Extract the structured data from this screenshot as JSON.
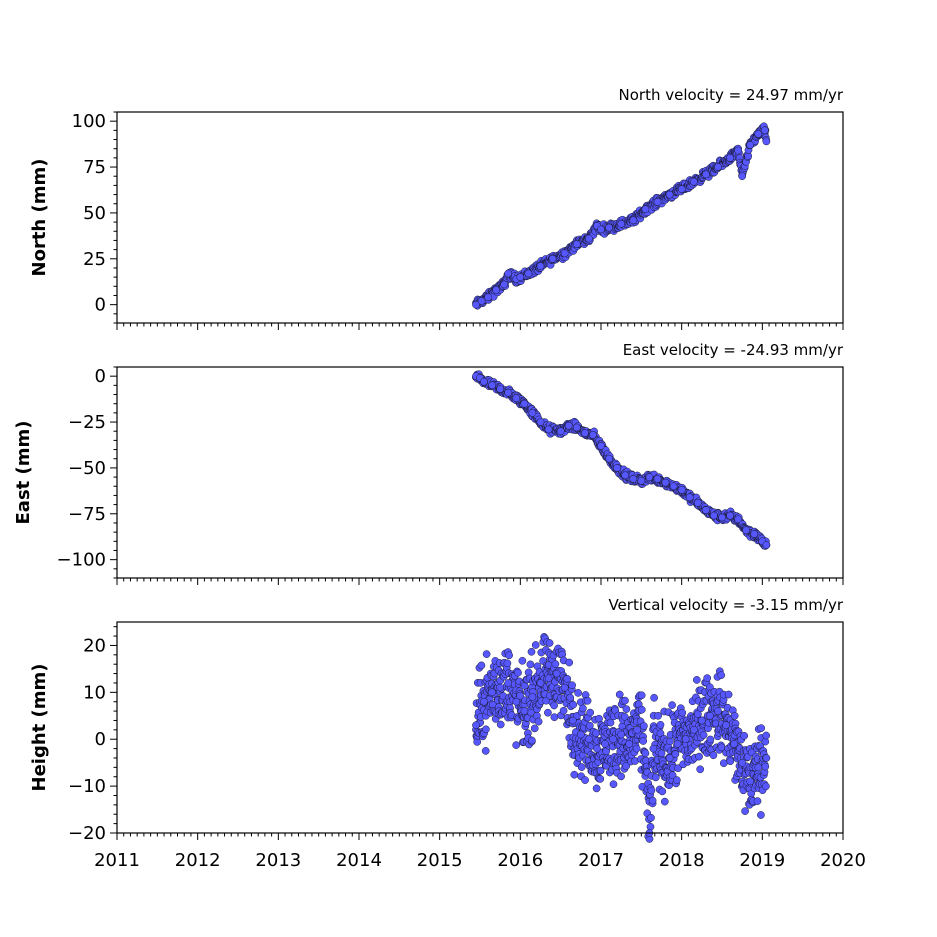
{
  "colors": {
    "marker_fill": "#5757ff",
    "marker_edge": "#1a1a33"
  },
  "chart_data": [
    {
      "type": "scatter",
      "title": "North velocity = 24.97 mm/yr",
      "ylabel": "North (mm)",
      "xlim": [
        2011,
        2020
      ],
      "ylim": [
        -10,
        105
      ],
      "yticks": [
        0,
        25,
        50,
        75,
        100
      ],
      "xticks": [
        2011,
        2012,
        2013,
        2014,
        2015,
        2016,
        2017,
        2018,
        2019,
        2020
      ],
      "x_ticklabels_shown": false,
      "grid": false,
      "x": [
        2015.45,
        2015.52,
        2015.6,
        2015.7,
        2015.8,
        2015.85,
        2015.95,
        2016.0,
        2016.1,
        2016.25,
        2016.4,
        2016.55,
        2016.7,
        2016.85,
        2016.95,
        2017.0,
        2017.1,
        2017.25,
        2017.4,
        2017.55,
        2017.7,
        2017.85,
        2018.0,
        2018.15,
        2018.3,
        2018.45,
        2018.6,
        2018.7,
        2018.75,
        2018.85,
        2018.95,
        2019.03,
        2019.05
      ],
      "y": [
        0,
        2,
        4,
        8,
        11,
        17,
        14,
        15,
        17,
        21,
        25,
        28,
        33,
        36,
        43,
        41,
        42,
        44,
        46,
        52,
        56,
        60,
        63,
        67,
        71,
        75,
        80,
        84,
        70,
        87,
        93,
        95,
        89
      ]
    },
    {
      "type": "scatter",
      "title": "East velocity = -24.93 mm/yr",
      "ylabel": "East (mm)",
      "xlim": [
        2011,
        2020
      ],
      "ylim": [
        -110,
        5
      ],
      "yticks": [
        0,
        -25,
        -50,
        -75,
        -100
      ],
      "xticks": [
        2011,
        2012,
        2013,
        2014,
        2015,
        2016,
        2017,
        2018,
        2019,
        2020
      ],
      "x_ticklabels_shown": false,
      "grid": false,
      "x": [
        2015.45,
        2015.5,
        2015.55,
        2015.65,
        2015.75,
        2015.85,
        2015.95,
        2016.05,
        2016.15,
        2016.25,
        2016.35,
        2016.5,
        2016.6,
        2016.7,
        2016.8,
        2016.9,
        2017.0,
        2017.1,
        2017.2,
        2017.3,
        2017.4,
        2017.5,
        2017.6,
        2017.7,
        2017.8,
        2017.9,
        2018.0,
        2018.1,
        2018.2,
        2018.3,
        2018.4,
        2018.5,
        2018.6,
        2018.7,
        2018.8,
        2018.9,
        2019.0,
        2019.05
      ],
      "y": [
        0,
        -1,
        -3,
        -5,
        -7,
        -9,
        -12,
        -15,
        -20,
        -25,
        -29,
        -30,
        -27,
        -28,
        -31,
        -32,
        -38,
        -45,
        -50,
        -54,
        -56,
        -57,
        -55,
        -56,
        -58,
        -60,
        -62,
        -66,
        -69,
        -73,
        -76,
        -77,
        -76,
        -78,
        -84,
        -86,
        -90,
        -92
      ]
    },
    {
      "type": "scatter",
      "title": "Vertical velocity = -3.15 mm/yr",
      "ylabel": "Height (mm)",
      "xlim": [
        2011,
        2020
      ],
      "ylim": [
        -20,
        25
      ],
      "yticks": [
        20,
        10,
        0,
        -10,
        -20
      ],
      "xticks": [
        2011,
        2012,
        2013,
        2014,
        2015,
        2016,
        2017,
        2018,
        2019,
        2020
      ],
      "xticklabels": [
        "2011",
        "2012",
        "2013",
        "2014",
        "2015",
        "2016",
        "2017",
        "2018",
        "2019",
        "2020"
      ],
      "x_ticklabels_shown": true,
      "grid": false,
      "x": [
        2015.45,
        2015.55,
        2015.65,
        2015.75,
        2015.85,
        2015.95,
        2016.05,
        2016.15,
        2016.25,
        2016.35,
        2016.45,
        2016.55,
        2016.65,
        2016.75,
        2016.85,
        2016.95,
        2017.05,
        2017.15,
        2017.25,
        2017.35,
        2017.45,
        2017.55,
        2017.6,
        2017.65,
        2017.75,
        2017.85,
        2017.95,
        2018.05,
        2018.15,
        2018.25,
        2018.35,
        2018.45,
        2018.55,
        2018.65,
        2018.75,
        2018.85,
        2018.95,
        2019.05
      ],
      "y": [
        3,
        8,
        10,
        11,
        12,
        8,
        6,
        9,
        12,
        13,
        14,
        11,
        4,
        1,
        0,
        -2,
        -1,
        0,
        1,
        -1,
        2,
        -3,
        -20,
        -2,
        -3,
        -4,
        -1,
        0,
        2,
        4,
        5,
        6,
        3,
        -1,
        -5,
        -9,
        -6,
        -4
      ]
    }
  ]
}
